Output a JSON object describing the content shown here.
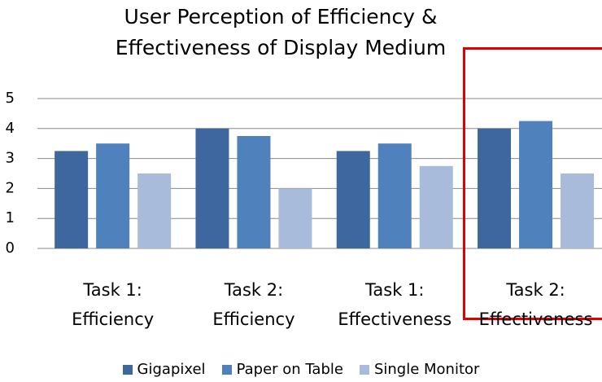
{
  "chart_data": {
    "type": "bar",
    "title": "User Perception of Efficiency & Effectiveness of Display Medium",
    "categories": [
      "Task 1:\nEfficiency",
      "Task 2:\nEfficiency",
      "Task 1:\nEffectiveness",
      "Task 2:\nEffectiveness"
    ],
    "series": [
      {
        "name": "Gigapixel",
        "color": "#3d679e",
        "values": [
          3.25,
          4,
          3.25,
          4
        ]
      },
      {
        "name": "Paper on Table",
        "color": "#4f81bd",
        "values": [
          3.5,
          3.75,
          3.5,
          4.25
        ]
      },
      {
        "name": "Single Monitor",
        "color": "#a8bbda",
        "values": [
          2.5,
          2,
          2.75,
          2.5
        ]
      }
    ],
    "ylim": [
      0,
      5
    ],
    "yticks": [
      0,
      1,
      2,
      3,
      4,
      5
    ],
    "grid": true,
    "legend": "bottom"
  }
}
